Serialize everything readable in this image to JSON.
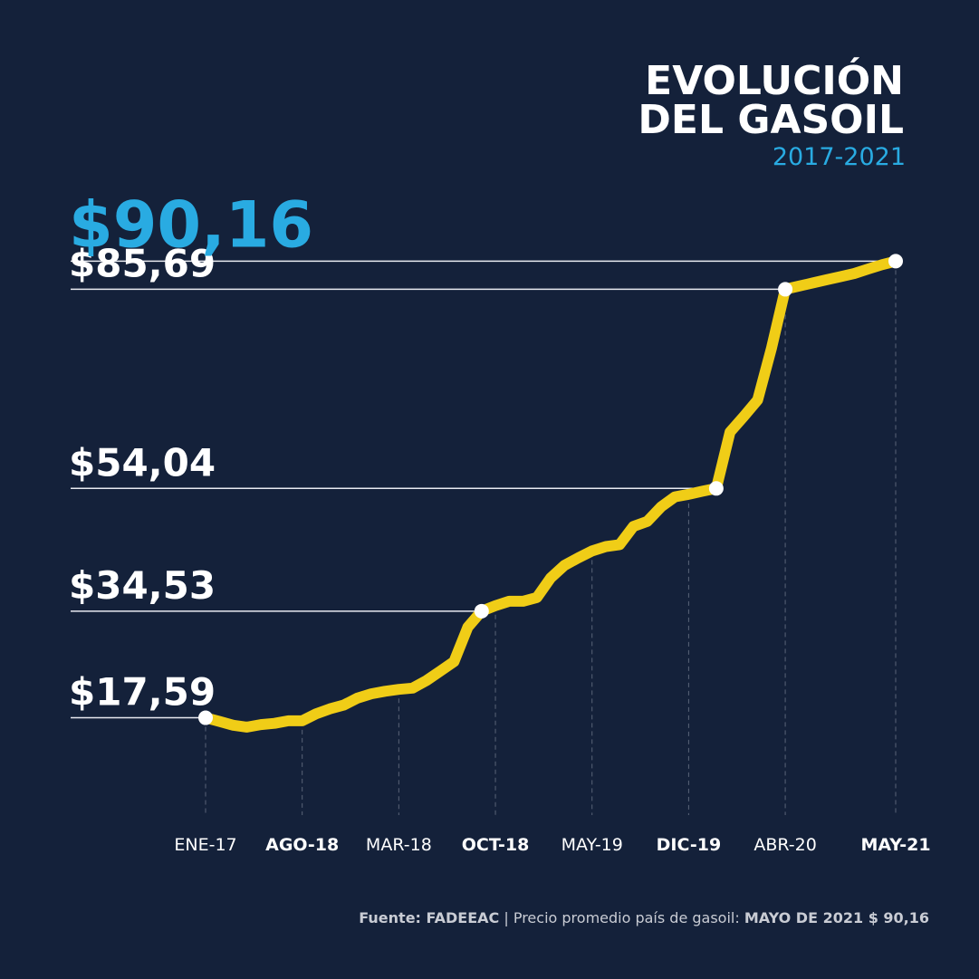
{
  "chart_data": {
    "type": "line",
    "title_lines": [
      "EVOLUCIÓN",
      "DEL GASOIL"
    ],
    "subtitle": "2017-2021",
    "categories": [
      "ENE-17",
      null,
      null,
      null,
      null,
      null,
      null,
      "AGO-18",
      null,
      null,
      null,
      null,
      null,
      null,
      "MAR-18",
      null,
      null,
      null,
      null,
      null,
      null,
      "OCT-18",
      null,
      null,
      null,
      null,
      null,
      null,
      "MAY-19",
      null,
      null,
      null,
      null,
      null,
      null,
      "DIC-19",
      null,
      null,
      null,
      null,
      null,
      null,
      "ABR-20",
      null,
      null,
      null,
      null,
      null,
      null,
      null,
      "MAY-21"
    ],
    "series": [
      {
        "color": "#f0cd17",
        "values": [
          17.59,
          17.0,
          16.4,
          16.1,
          16.5,
          16.7,
          17.1,
          17.1,
          18.2,
          19.0,
          19.6,
          20.7,
          21.4,
          21.8,
          22.1,
          22.3,
          23.5,
          25.0,
          26.5,
          32.0,
          34.53,
          35.4,
          36.1,
          36.1,
          36.7,
          39.8,
          41.8,
          43.0,
          44.1,
          44.8,
          45.1,
          48.0,
          48.8,
          51.1,
          52.7,
          53.1,
          53.6,
          54.04,
          63.0,
          65.5,
          68.1,
          76.3,
          85.69,
          86.2,
          86.7,
          87.2,
          87.7,
          88.2,
          88.9,
          89.6,
          90.16
        ],
        "value_labels": [
          "$17,59",
          null,
          null,
          null,
          null,
          null,
          null,
          null,
          null,
          null,
          null,
          null,
          null,
          null,
          null,
          null,
          null,
          null,
          null,
          null,
          "$34,53",
          null,
          null,
          null,
          null,
          null,
          null,
          null,
          null,
          null,
          null,
          null,
          null,
          null,
          null,
          null,
          null,
          "$54,04",
          null,
          null,
          null,
          null,
          "$85,69",
          null,
          null,
          null,
          null,
          null,
          null,
          null,
          "$90,16"
        ]
      }
    ],
    "ylim": [
      5,
      100
    ],
    "source": {
      "label": "Fuente: FADEEAC",
      "text": "| Precio promedio país de gasoil:",
      "highlight": "MAYO DE 2021 $ 90,16"
    }
  }
}
